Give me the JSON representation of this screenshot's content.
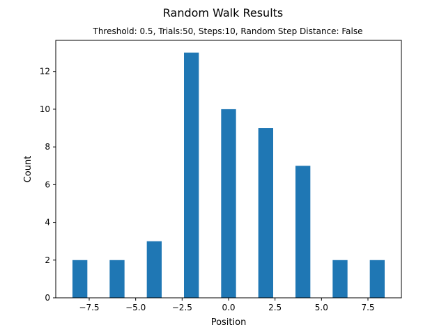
{
  "chart_data": {
    "type": "bar",
    "title": "Random Walk Results",
    "subtitle": "Threshold: 0.5, Trials:50, Steps:10, Random Step Distance: False",
    "xlabel": "Position",
    "ylabel": "Count",
    "xlim": [
      -9.3,
      9.3
    ],
    "ylim": [
      0,
      13.65
    ],
    "bar_width": 0.8,
    "bar_color": "#1f77b4",
    "x": [
      -8,
      -6,
      -4,
      -2,
      0,
      2,
      4,
      6,
      8
    ],
    "values": [
      2,
      2,
      3,
      13,
      10,
      9,
      7,
      2,
      2
    ],
    "xticks": [
      -7.5,
      -5.0,
      -2.5,
      0.0,
      2.5,
      5.0,
      7.5
    ],
    "xtick_labels": [
      "−7.5",
      "−5.0",
      "−2.5",
      "0.0",
      "2.5",
      "5.0",
      "7.5"
    ],
    "yticks": [
      0,
      2,
      4,
      6,
      8,
      10,
      12
    ],
    "ytick_labels": [
      "0",
      "2",
      "4",
      "6",
      "8",
      "10",
      "12"
    ],
    "grid": false,
    "legend": "none"
  }
}
